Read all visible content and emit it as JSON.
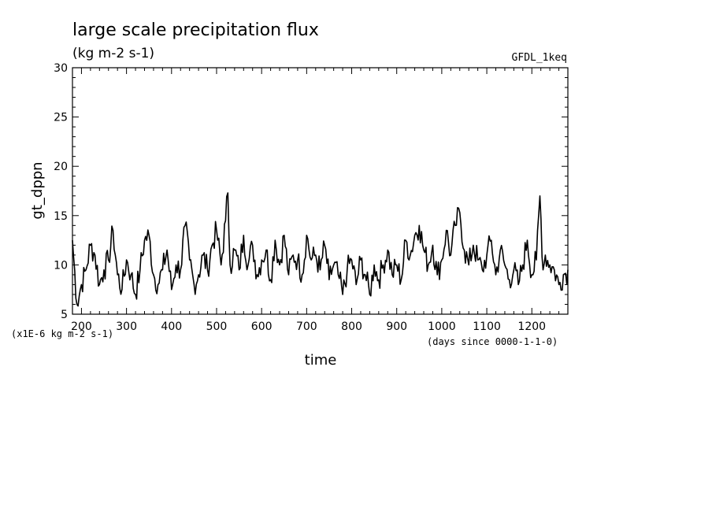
{
  "chart_data": {
    "type": "line",
    "title": "large scale precipitation flux",
    "subtitle": "(kg m-2 s-1)",
    "tag": "GFDL_1keq",
    "xlabel": "time",
    "ylabel": "gt_dppn",
    "scale_note": "(x1E-6 kg m-2 s-1)",
    "x_units_note": "(days since 0000-1-1-0)",
    "xlim": [
      180,
      1280
    ],
    "ylim": [
      5,
      30
    ],
    "xticks": [
      200,
      300,
      400,
      500,
      600,
      700,
      800,
      900,
      1000,
      1100,
      1200
    ],
    "yticks": [
      5,
      10,
      15,
      20,
      25,
      30
    ],
    "grid": false,
    "series_color": "#000000",
    "x": [
      180,
      190,
      200,
      210,
      220,
      230,
      240,
      250,
      260,
      270,
      280,
      290,
      300,
      310,
      320,
      330,
      340,
      350,
      360,
      370,
      380,
      390,
      400,
      410,
      420,
      430,
      440,
      450,
      460,
      470,
      480,
      490,
      500,
      510,
      520,
      525,
      530,
      540,
      550,
      560,
      570,
      580,
      590,
      600,
      610,
      620,
      630,
      640,
      650,
      660,
      670,
      680,
      690,
      700,
      710,
      720,
      730,
      740,
      750,
      760,
      770,
      780,
      790,
      800,
      810,
      820,
      830,
      840,
      850,
      860,
      870,
      880,
      890,
      900,
      910,
      920,
      930,
      940,
      950,
      960,
      970,
      980,
      990,
      1000,
      1010,
      1020,
      1030,
      1040,
      1050,
      1060,
      1070,
      1080,
      1090,
      1100,
      1110,
      1120,
      1130,
      1140,
      1150,
      1160,
      1170,
      1180,
      1190,
      1200,
      1210,
      1218,
      1225,
      1230,
      1240,
      1250,
      1260,
      1270,
      1280
    ],
    "y": [
      12.5,
      6.0,
      8.0,
      9.5,
      12.0,
      11.0,
      8.0,
      9.5,
      10.5,
      13.5,
      9.0,
      7.5,
      10.5,
      9.0,
      7.0,
      9.5,
      12.5,
      13.0,
      9.0,
      8.0,
      9.5,
      11.5,
      7.5,
      10.0,
      9.5,
      14.0,
      10.5,
      8.0,
      9.0,
      11.0,
      9.5,
      12.0,
      13.5,
      10.0,
      14.5,
      17.3,
      10.0,
      11.5,
      9.5,
      13.0,
      10.0,
      12.0,
      9.0,
      10.5,
      11.5,
      8.5,
      12.5,
      10.0,
      13.0,
      9.0,
      11.0,
      10.5,
      9.0,
      13.0,
      10.5,
      11.0,
      9.5,
      12.0,
      8.5,
      10.0,
      9.0,
      7.0,
      9.5,
      10.5,
      8.0,
      10.5,
      9.0,
      7.0,
      10.0,
      8.5,
      10.0,
      11.5,
      9.0,
      10.0,
      8.5,
      12.5,
      11.0,
      13.0,
      14.0,
      11.5,
      10.0,
      12.0,
      9.0,
      10.5,
      13.5,
      11.0,
      14.0,
      15.3,
      11.5,
      10.0,
      12.0,
      10.5,
      9.5,
      11.0,
      12.5,
      9.0,
      11.5,
      10.0,
      8.5,
      9.5,
      8.0,
      10.0,
      12.5,
      9.0,
      10.5,
      17.0,
      9.5,
      11.0,
      10.0,
      9.5,
      8.0,
      9.0,
      9.5
    ]
  }
}
